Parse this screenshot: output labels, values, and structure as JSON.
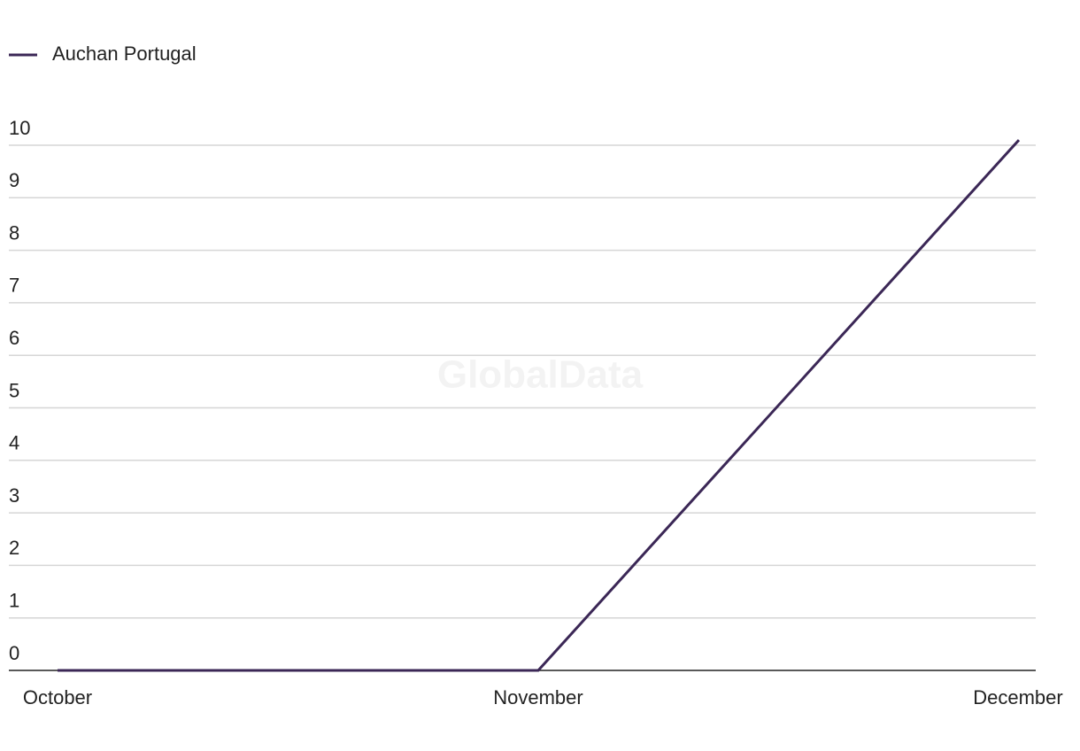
{
  "chart_data": {
    "type": "line",
    "watermark": "GlobalData",
    "categories": [
      "October",
      "November",
      "December"
    ],
    "series": [
      {
        "name": "Auchan Portugal",
        "color": "#3b2756",
        "values": [
          0,
          0,
          10.1
        ]
      }
    ],
    "ylim": [
      0,
      10
    ],
    "yticks": [
      0,
      1,
      2,
      3,
      4,
      5,
      6,
      7,
      8,
      9,
      10
    ],
    "grid": true,
    "legend": "top-left"
  }
}
